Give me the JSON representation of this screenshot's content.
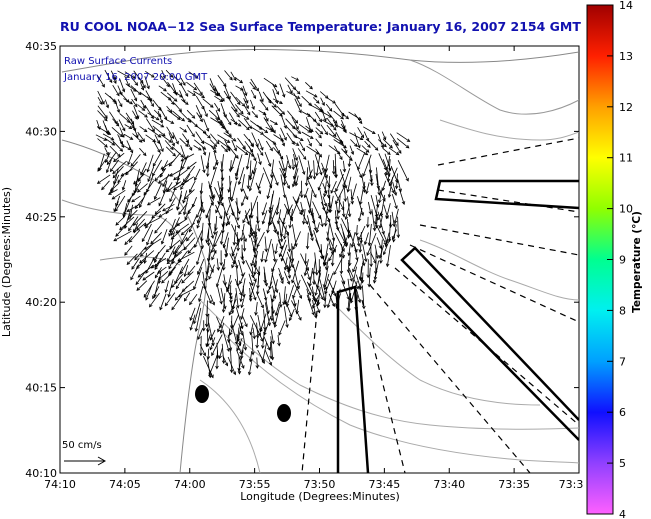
{
  "title": "RU COOL  NOAA−12  Sea Surface Temperature:  January 16, 2007 2154 GMT",
  "overlay": {
    "line1": "Raw Surface Currents",
    "line2": "January 16, 2007 20:00 GMT"
  },
  "axes": {
    "xlabel": "Longitude (Degrees:Minutes)",
    "ylabel": "Latitude (Degrees:Minutes)",
    "x_ticks": [
      "74:10",
      "74:05",
      "74:00",
      "73:55",
      "73:50",
      "73:45",
      "73:40",
      "73:35",
      "73:3"
    ],
    "y_ticks": [
      "40:35",
      "40:30",
      "40:25",
      "40:20",
      "40:15",
      "40:10"
    ]
  },
  "scale_vector": {
    "label": "50 cm/s"
  },
  "colorbar": {
    "label": "Temperature (°C)",
    "ticks": [
      "14",
      "13",
      "12",
      "11",
      "10",
      "9",
      "8",
      "7",
      "6",
      "5",
      "4"
    ],
    "min": 4,
    "max": 14,
    "colors": [
      "#ff60ff",
      "#9040ff",
      "#1010ff",
      "#00a0ff",
      "#00f0f0",
      "#00ff90",
      "#90ff00",
      "#ffff00",
      "#ffa000",
      "#ff2000",
      "#a00000"
    ]
  },
  "icons": [
    "current-vector-arrow",
    "radar-antenna-marker"
  ]
}
